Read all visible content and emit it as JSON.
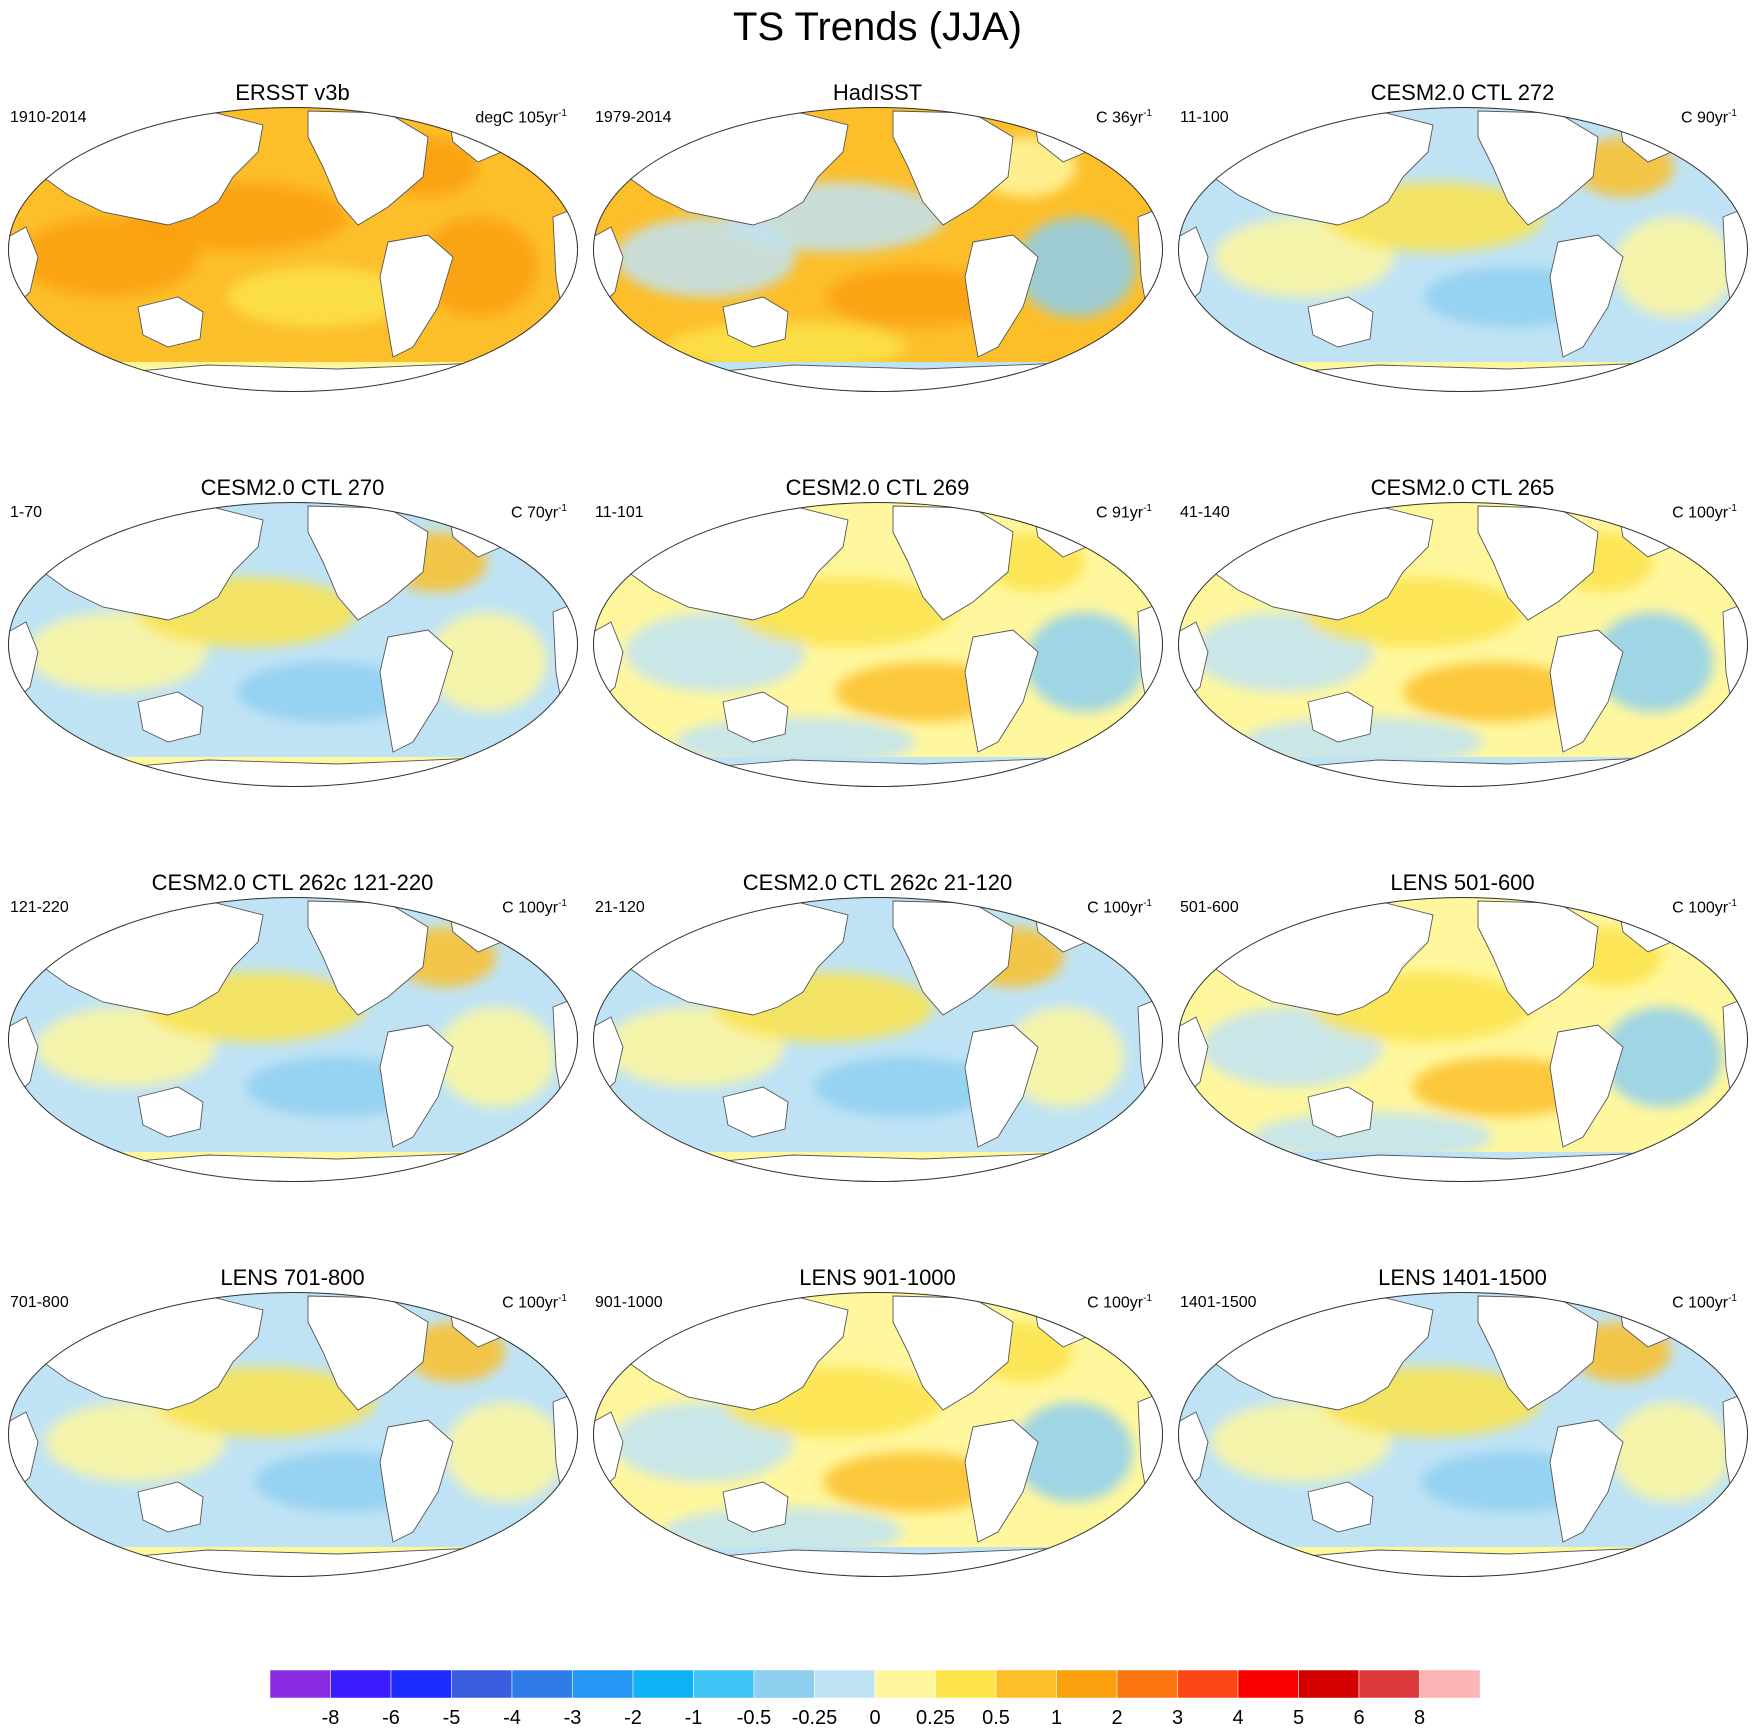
{
  "figure": {
    "title": "TS Trends (JJA)"
  },
  "panels": [
    {
      "name": "ERSST v3b",
      "period": "1910-2014",
      "unit_prefix": "degC 105yr",
      "unit_exp": "-1",
      "pattern": "ersst"
    },
    {
      "name": "HadISST",
      "period": "1979-2014",
      "unit_prefix": "C 36yr",
      "unit_exp": "-1",
      "pattern": "hadisst"
    },
    {
      "name": "CESM2.0 CTL 272",
      "period": "11-100",
      "unit_prefix": "C 90yr",
      "unit_exp": "-1",
      "pattern": "mixed_cool"
    },
    {
      "name": "CESM2.0 CTL 270",
      "period": "1-70",
      "unit_prefix": "C 70yr",
      "unit_exp": "-1",
      "pattern": "mixed_cool"
    },
    {
      "name": "CESM2.0 CTL 269",
      "period": "11-101",
      "unit_prefix": "C 91yr",
      "unit_exp": "-1",
      "pattern": "mixed_warm"
    },
    {
      "name": "CESM2.0 CTL 265",
      "period": "41-140",
      "unit_prefix": "C 100yr",
      "unit_exp": "-1",
      "pattern": "mixed_warm"
    },
    {
      "name": "CESM2.0 CTL 262c 121-220",
      "period": "121-220",
      "unit_prefix": "C 100yr",
      "unit_exp": "-1",
      "pattern": "mixed_cool"
    },
    {
      "name": "CESM2.0 CTL 262c 21-120",
      "period": "21-120",
      "unit_prefix": "C 100yr",
      "unit_exp": "-1",
      "pattern": "mixed_cool"
    },
    {
      "name": "LENS 501-600",
      "period": "501-600",
      "unit_prefix": "C 100yr",
      "unit_exp": "-1",
      "pattern": "mixed_warm"
    },
    {
      "name": "LENS 701-800",
      "period": "701-800",
      "unit_prefix": "C 100yr",
      "unit_exp": "-1",
      "pattern": "mixed_cool"
    },
    {
      "name": "LENS 901-1000",
      "period": "901-1000",
      "unit_prefix": "C 100yr",
      "unit_exp": "-1",
      "pattern": "mixed_warm"
    },
    {
      "name": "LENS 1401-1500",
      "period": "1401-1500",
      "unit_prefix": "C 100yr",
      "unit_exp": "-1",
      "pattern": "mixed_cool"
    }
  ],
  "colorbar": {
    "colors": [
      "#8a2be2",
      "#3a1cff",
      "#1c2cff",
      "#3a5de0",
      "#2f7be8",
      "#2496f5",
      "#0eb2f5",
      "#40c4f5",
      "#8ecff0",
      "#bfe3f5",
      "#fff79e",
      "#fce34a",
      "#fcbf2a",
      "#fca010",
      "#fc7612",
      "#fc4616",
      "#fc0000",
      "#d40000",
      "#dc3a3a",
      "#fcb4b4"
    ],
    "labels": [
      "-8",
      "-6",
      "-5",
      "-4",
      "-3",
      "-2",
      "-1",
      "-0.5",
      "-0.25",
      "0",
      "0.25",
      "0.5",
      "1",
      "2",
      "3",
      "4",
      "5",
      "6",
      "8"
    ]
  }
}
